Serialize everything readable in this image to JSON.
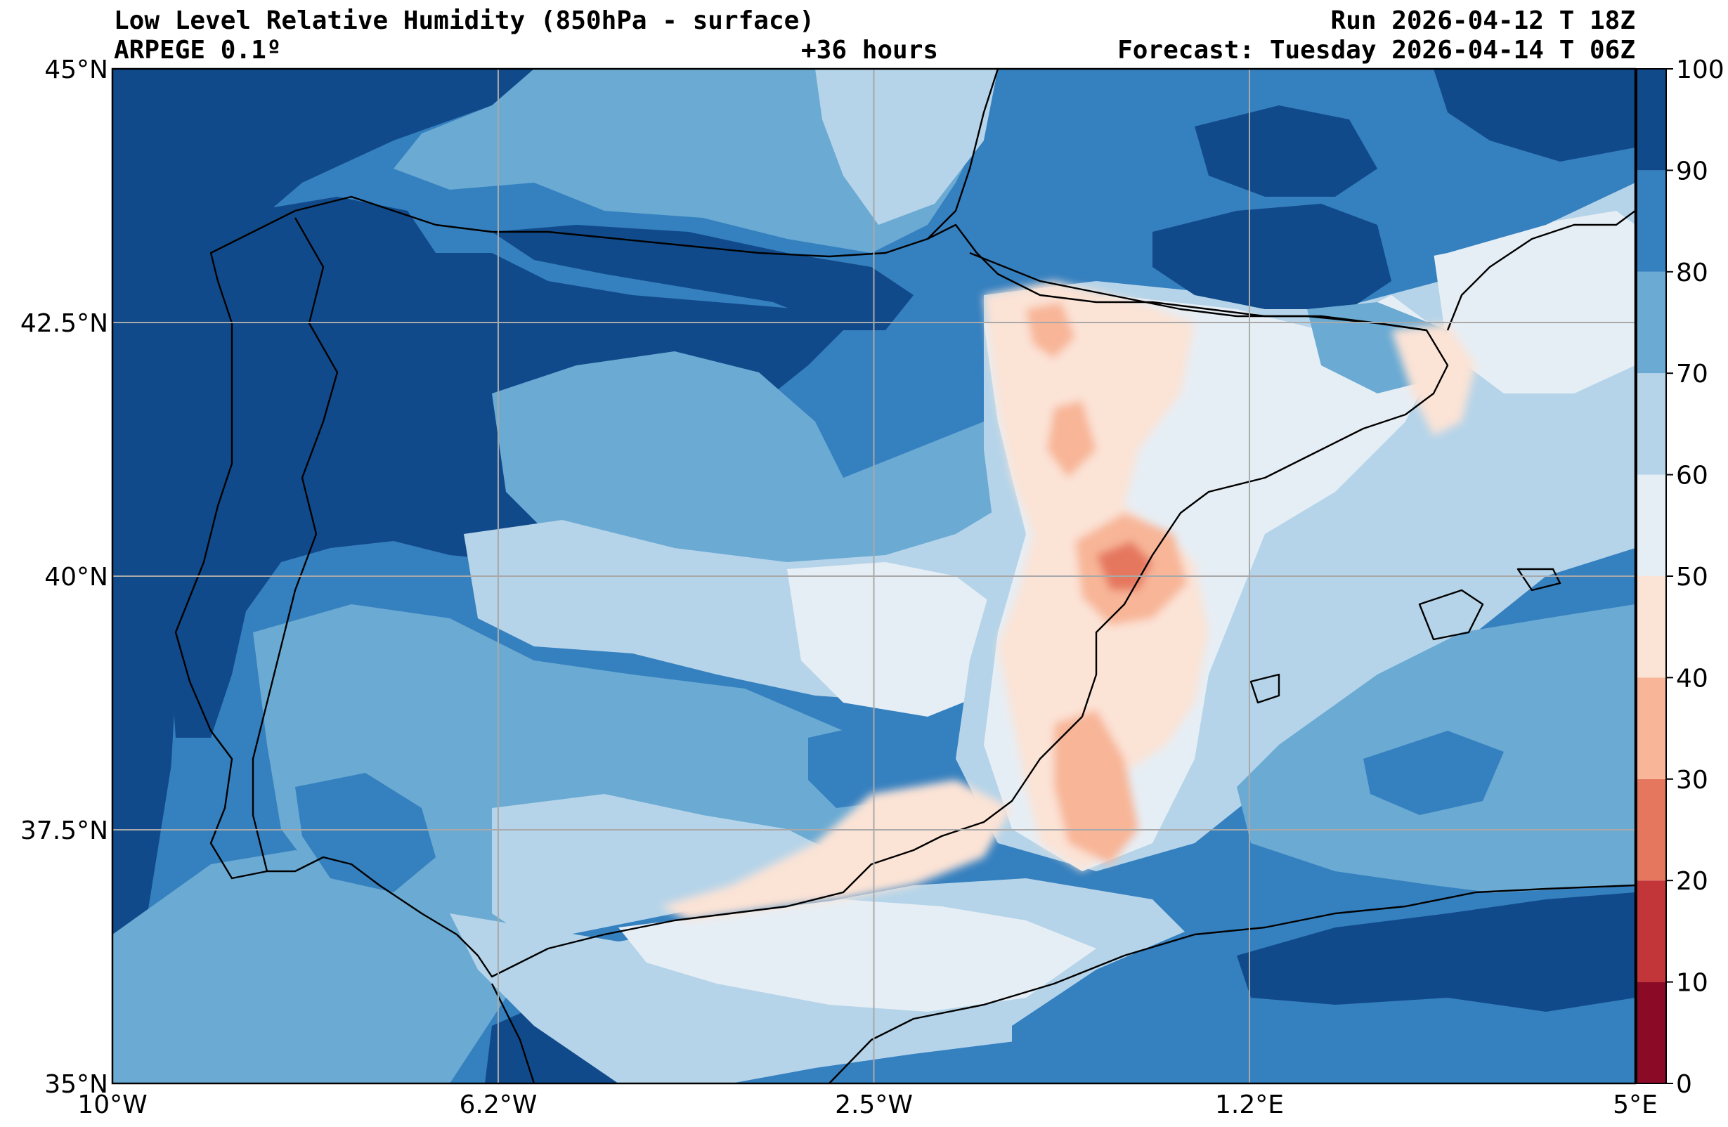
{
  "header": {
    "title": "Low Level Relative Humidity (850hPa - surface)",
    "model": "ARPEGE 0.1º",
    "lead_time": "+36 hours",
    "run": "Run 2026-04-12 T 18Z",
    "forecast": "Forecast: Tuesday 2026-04-14 T 06Z"
  },
  "map": {
    "extent": {
      "lon_min": -10,
      "lon_max": 5,
      "lat_min": 35,
      "lat_max": 45
    },
    "x_ticks": [
      {
        "value": -10,
        "label": "10°W"
      },
      {
        "value": -6.2,
        "label": "6.2°W"
      },
      {
        "value": -2.5,
        "label": "2.5°W"
      },
      {
        "value": 1.2,
        "label": "1.2°E"
      },
      {
        "value": 5,
        "label": "5°E"
      }
    ],
    "y_ticks": [
      {
        "value": 35,
        "label": "35°N"
      },
      {
        "value": 37.5,
        "label": "37.5°N"
      },
      {
        "value": 40,
        "label": "40°N"
      },
      {
        "value": 42.5,
        "label": "42.5°N"
      },
      {
        "value": 45,
        "label": "45°N"
      }
    ],
    "grid": true
  },
  "colorbar": {
    "levels": [
      0,
      10,
      20,
      30,
      40,
      50,
      60,
      70,
      80,
      90,
      100
    ],
    "labels": [
      "0",
      "10",
      "20",
      "30",
      "40",
      "50",
      "60",
      "70",
      "80",
      "90",
      "100"
    ],
    "colors": [
      "#8b0a26",
      "#c2363a",
      "#e5775f",
      "#f8b597",
      "#fbe3d6",
      "#e6eef5",
      "#b5d4e9",
      "#6aaad3",
      "#3580bf",
      "#114a8b"
    ]
  }
}
